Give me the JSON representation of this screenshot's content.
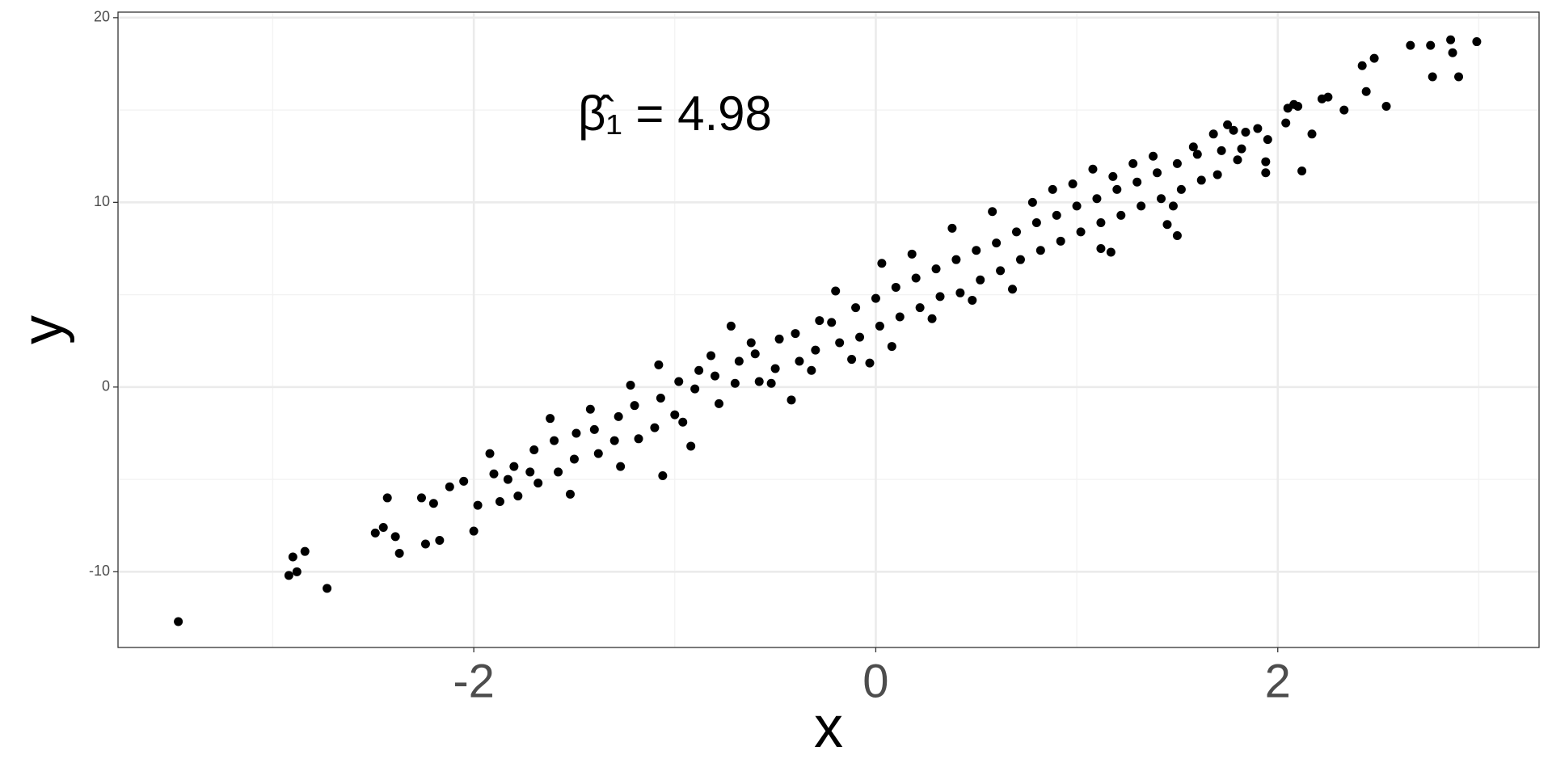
{
  "chart_data": {
    "type": "scatter",
    "x_label": "x",
    "y_label": "y",
    "annotation": "β̂₁ = 4.98",
    "color": "#000000",
    "xlim": [
      -3.77,
      3.3
    ],
    "ylim": [
      -14.1,
      20.3
    ],
    "xticks": [
      -2,
      0,
      2
    ],
    "yticks": [
      -10,
      0,
      10,
      20
    ],
    "x_minor_ticks": [
      -3,
      -1,
      1,
      3
    ],
    "y_minor_ticks": [
      -5,
      5,
      15
    ],
    "grid": true,
    "x": [
      -3.47,
      -2.92,
      -2.9,
      -2.88,
      -2.84,
      -2.73,
      -2.49,
      -2.45,
      -2.43,
      -2.39,
      -2.37,
      -2.26,
      -2.24,
      -2.2,
      -2.17,
      -2.12,
      -2.05,
      -2.0,
      -1.98,
      -1.9,
      -1.87,
      -1.92,
      -1.8,
      -1.78,
      -1.83,
      -1.7,
      -1.68,
      -1.72,
      -1.6,
      -1.58,
      -1.62,
      -1.5,
      -1.49,
      -1.52,
      -1.4,
      -1.38,
      -1.42,
      -1.3,
      -1.28,
      -1.27,
      -1.2,
      -1.18,
      -1.22,
      -1.1,
      -1.07,
      -1.08,
      -1.06,
      -1.0,
      -0.98,
      -0.96,
      -0.9,
      -0.92,
      -0.88,
      -0.8,
      -0.78,
      -0.82,
      -0.7,
      -0.68,
      -0.72,
      -0.6,
      -0.58,
      -0.62,
      -0.5,
      -0.48,
      -0.52,
      -0.4,
      -0.38,
      -0.42,
      -0.3,
      -0.28,
      -0.32,
      -0.2,
      -0.18,
      -0.22,
      -0.1,
      -0.08,
      -0.12,
      0,
      0.02,
      0.03,
      -0.03,
      0.1,
      0.12,
      0.08,
      0.2,
      0.22,
      0.18,
      0.3,
      0.32,
      0.28,
      0.4,
      0.42,
      0.38,
      0.5,
      0.52,
      0.48,
      0.6,
      0.62,
      0.58,
      0.7,
      0.72,
      0.68,
      0.8,
      0.82,
      0.78,
      0.9,
      0.92,
      0.88,
      1.0,
      1.02,
      0.98,
      1.1,
      1.08,
      1.12,
      1.2,
      1.22,
      1.18,
      1.3,
      1.32,
      1.28,
      1.4,
      1.42,
      1.38,
      1.5,
      1.52,
      1.48,
      1.6,
      1.62,
      1.58,
      1.68,
      1.72,
      1.78,
      1.82,
      1.9,
      1.12,
      1.17,
      1.45,
      1.5,
      1.7,
      1.75,
      1.8,
      1.84,
      1.94,
      1.94,
      1.95,
      2.04,
      2.05,
      2.08,
      2.1,
      2.12,
      2.17,
      2.22,
      2.25,
      2.33,
      2.42,
      2.44,
      2.48,
      2.54,
      2.66,
      2.76,
      2.77,
      2.86,
      2.87,
      2.9,
      2.99
    ],
    "values": [
      -12.7,
      -10.2,
      -9.2,
      -10.0,
      -8.9,
      -10.9,
      -7.9,
      -7.6,
      -6.0,
      -8.1,
      -9.0,
      -6.0,
      -8.5,
      -6.3,
      -8.3,
      -5.4,
      -5.1,
      -7.8,
      -6.4,
      -4.7,
      -6.2,
      -3.6,
      -4.3,
      -5.9,
      -5.0,
      -3.4,
      -5.2,
      -4.6,
      -2.9,
      -4.6,
      -1.7,
      -3.9,
      -2.5,
      -5.8,
      -2.3,
      -3.6,
      -1.2,
      -2.9,
      -1.6,
      -4.3,
      -1.0,
      -2.8,
      0.1,
      -2.2,
      -0.6,
      1.2,
      -4.8,
      -1.5,
      0.3,
      -1.9,
      -0.1,
      -3.2,
      0.9,
      0.6,
      -0.9,
      1.7,
      0.2,
      1.4,
      3.3,
      1.8,
      0.3,
      2.4,
      1.0,
      2.6,
      0.2,
      2.9,
      1.4,
      -0.7,
      2.0,
      3.6,
      0.9,
      5.2,
      2.4,
      3.5,
      4.3,
      2.7,
      1.5,
      4.8,
      3.3,
      6.7,
      1.3,
      5.4,
      3.8,
      2.2,
      5.9,
      4.3,
      7.2,
      6.4,
      4.9,
      3.7,
      6.9,
      5.1,
      8.6,
      7.4,
      5.8,
      4.7,
      7.8,
      6.3,
      9.5,
      8.4,
      6.9,
      5.3,
      8.9,
      7.4,
      10.0,
      9.3,
      7.9,
      10.7,
      9.8,
      8.4,
      11.0,
      10.2,
      11.8,
      8.9,
      10.7,
      9.3,
      11.4,
      11.1,
      9.8,
      12.1,
      11.6,
      10.2,
      12.5,
      12.1,
      10.7,
      9.8,
      12.6,
      11.2,
      13.0,
      13.7,
      12.8,
      13.9,
      12.9,
      14.0,
      7.5,
      7.3,
      8.8,
      8.2,
      11.5,
      14.2,
      12.3,
      13.8,
      11.6,
      12.2,
      13.4,
      14.3,
      15.1,
      15.3,
      15.2,
      11.7,
      13.7,
      15.6,
      15.7,
      15.0,
      17.4,
      16.0,
      17.8,
      15.2,
      18.5,
      18.5,
      16.8,
      18.8,
      18.1,
      16.8,
      18.7
    ]
  }
}
